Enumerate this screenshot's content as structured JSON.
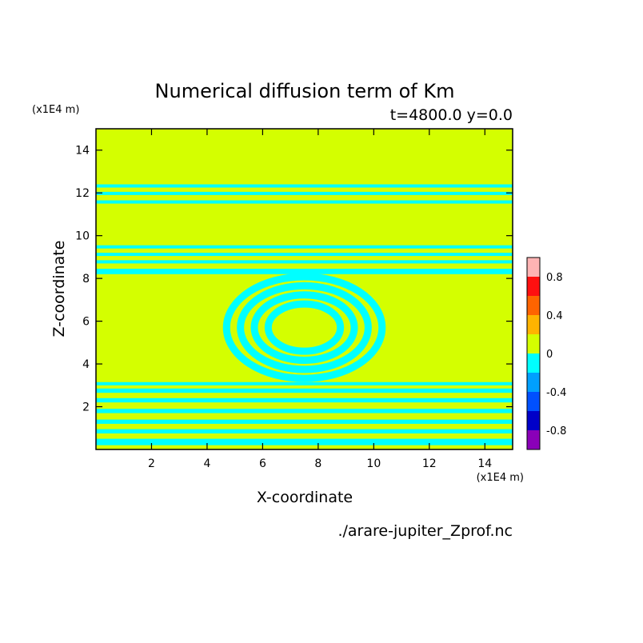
{
  "chart_data": {
    "type": "heatmap",
    "title": "Numerical diffusion term of Km",
    "subtitle": "t=4800.0 y=0.0",
    "xlabel": "X-coordinate",
    "ylabel": "Z-coordinate",
    "x_unit": "(x1E4 m)",
    "y_unit": "(x1E4 m)",
    "xlim": [
      0,
      15
    ],
    "ylim": [
      0,
      15
    ],
    "x_ticks": [
      2,
      4,
      6,
      8,
      10,
      12,
      14
    ],
    "y_ticks": [
      2,
      4,
      6,
      8,
      10,
      12,
      14
    ],
    "source_file": "./arare-jupiter_Zprof.nc",
    "colorbar": {
      "levels": [
        -1.0,
        -0.8,
        -0.6,
        -0.4,
        -0.2,
        0.0,
        0.2,
        0.4,
        0.6,
        0.8,
        1.0
      ],
      "colors": [
        "#8a00b8",
        "#0000c8",
        "#0050ff",
        "#00a0ff",
        "#00ffff",
        "#d4ff00",
        "#ffb400",
        "#ff6400",
        "#ff1010",
        "#ffb4b4"
      ],
      "tick_labels": [
        "0.8",
        "0.4",
        "0",
        "-0.4",
        "-0.8"
      ],
      "tick_values": [
        0.8,
        0.4,
        0.0,
        -0.4,
        -0.8
      ]
    },
    "field": {
      "background_value": 0.1,
      "negative_value": -0.1,
      "horizontal_bands_z": [
        [
          0.2,
          0.5
        ],
        [
          0.75,
          0.95
        ],
        [
          1.2,
          1.4
        ],
        [
          1.7,
          1.9
        ],
        [
          2.2,
          2.4
        ],
        [
          2.65,
          2.85
        ],
        [
          3.0,
          3.15
        ],
        [
          8.2,
          8.45
        ],
        [
          8.7,
          8.85
        ],
        [
          9.05,
          9.2
        ],
        [
          9.4,
          9.55
        ],
        [
          11.5,
          11.65
        ],
        [
          11.9,
          12.05
        ],
        [
          12.25,
          12.4
        ]
      ],
      "dome_center": [
        7.5,
        5.7
      ],
      "dome_radii": [
        1.3,
        1.8,
        2.3,
        2.8
      ]
    }
  }
}
